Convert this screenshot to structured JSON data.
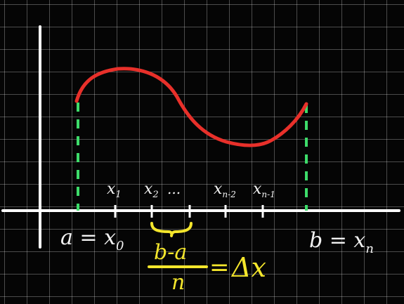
{
  "diagram": {
    "colors": {
      "background": "#050505",
      "grid": "#5a5a5a",
      "axes": "#ffffff",
      "curve": "#e8302a",
      "bounds": "#3ddc6a",
      "annotation": "#f4e62c"
    },
    "labels": {
      "a": "a = x",
      "a_sub": "0",
      "b": "b = x",
      "b_sub": "n",
      "x1": "x",
      "x1_sub": "1",
      "x2": "x",
      "x2_sub": "2",
      "dots": "...",
      "xn2": "x",
      "xn2_sub": "n-2",
      "xn1": "x",
      "xn1_sub": "n-1"
    },
    "formula": {
      "numerator": "b-a",
      "denominator": "n",
      "equals": "=",
      "result": "Δx"
    }
  }
}
